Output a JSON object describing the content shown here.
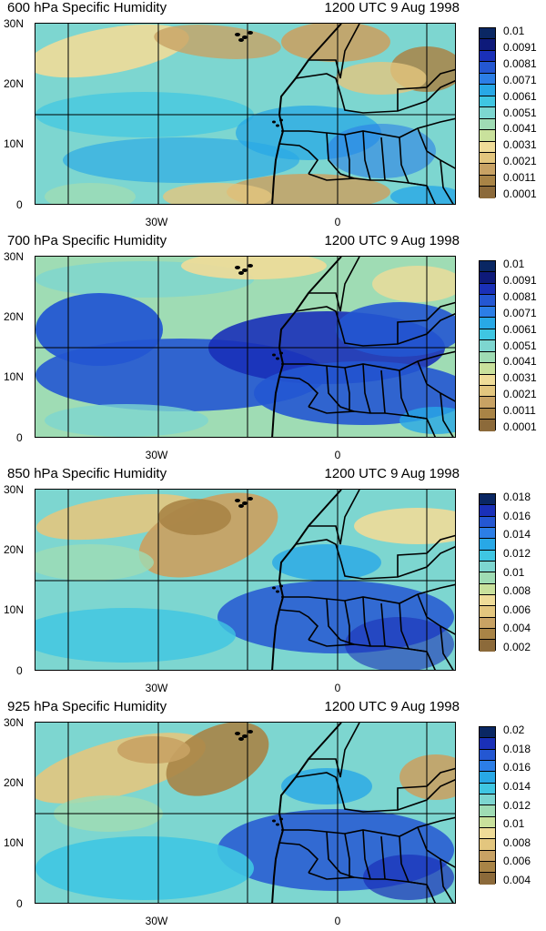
{
  "palette": {
    "brown_dark": "#8c6a3a",
    "brown": "#a98446",
    "tan": "#c8a264",
    "sand": "#e3c67e",
    "sand_light": "#efdc98",
    "yellow_green": "#c9e19c",
    "light_green": "#9fdcb4",
    "aqua": "#7dd6d0",
    "cyan": "#3fc6e2",
    "sky": "#28a8e6",
    "blue": "#2c7ee6",
    "royal": "#2457d2",
    "indigo": "#1a30b8",
    "navy": "#0e1a7a",
    "navy_dark": "#0a2763"
  },
  "y_axis_labels": [
    "30N",
    "20N",
    "10N",
    "0"
  ],
  "x_axis_labels": [
    "30W",
    "0"
  ],
  "panels": [
    {
      "title": "600 hPa Specific Humidity",
      "time": "1200 UTC 9 Aug 1998",
      "legend": [
        "0.01",
        "0.0091",
        "0.0081",
        "0.0071",
        "0.0061",
        "0.0051",
        "0.0041",
        "0.0031",
        "0.0021",
        "0.0011",
        "0.0001"
      ],
      "moisture_level": "moderate"
    },
    {
      "title": "700 hPa Specific Humidity",
      "time": "1200 UTC 9 Aug 1998",
      "legend": [
        "0.01",
        "0.0091",
        "0.0081",
        "0.0071",
        "0.0061",
        "0.0051",
        "0.0041",
        "0.0031",
        "0.0021",
        "0.0011",
        "0.0001"
      ],
      "moisture_level": "very moist"
    },
    {
      "title": "850 hPa Specific Humidity",
      "time": "1200 UTC 9 Aug 1998",
      "legend": [
        "0.018",
        "0.016",
        "0.014",
        "0.012",
        "0.01",
        "0.008",
        "0.006",
        "0.004",
        "0.002"
      ],
      "moisture_level": "moist"
    },
    {
      "title": "925 hPa Specific Humidity",
      "time": "1200 UTC 9 Aug 1998",
      "legend": [
        "0.02",
        "0.018",
        "0.016",
        "0.014",
        "0.012",
        "0.01",
        "0.008",
        "0.006",
        "0.004"
      ],
      "moisture_level": "moist"
    }
  ]
}
